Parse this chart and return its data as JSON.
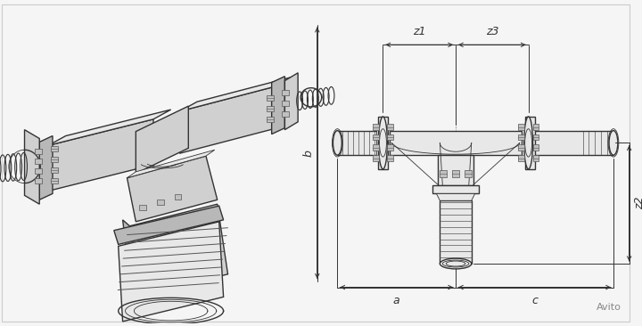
{
  "bg_color": "#f5f5f5",
  "line_color": "#333333",
  "dim_color": "#333333",
  "fill_light": "#e8e8e8",
  "fill_mid": "#d0d0d0",
  "fill_dark": "#b8b8b8",
  "fill_darker": "#a0a0a0",
  "white": "#ffffff",
  "bolt_fill": "#c0c0c0",
  "bolt_stroke": "#555555",
  "thread_color": "#555555",
  "axis_color": "#888888",
  "fig_width": 7.2,
  "fig_height": 3.66,
  "dpi": 100,
  "labels": {
    "z1": "z1",
    "z2": "z2",
    "z3": "z3",
    "a": "a",
    "b": "b",
    "c": "c"
  }
}
